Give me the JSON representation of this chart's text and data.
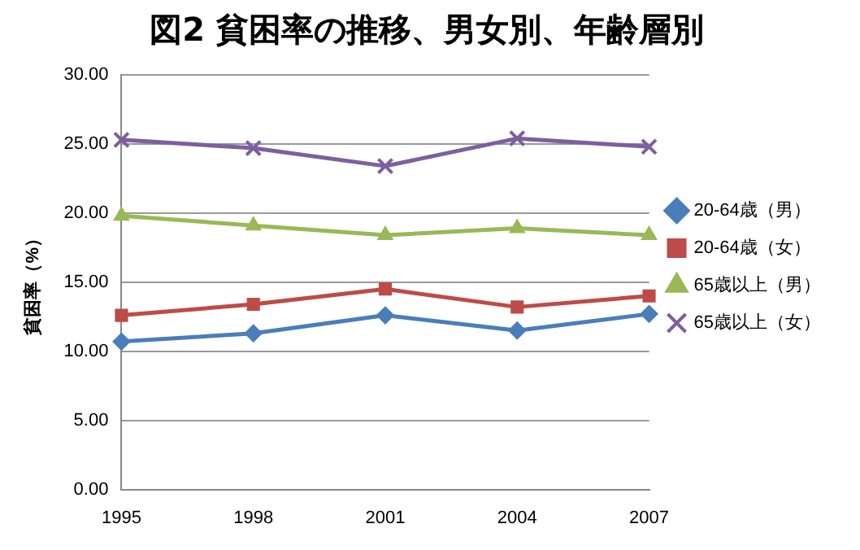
{
  "chart_data": {
    "type": "line",
    "title": "図2 貧困率の推移、男女別、年齢層別",
    "ylabel": "貧困率（%）",
    "categories": [
      "1995",
      "1998",
      "2001",
      "2004",
      "2007"
    ],
    "series": [
      {
        "name": "20-64歳（男）",
        "color": "#4a7ebb",
        "marker": "diamond",
        "values": [
          10.7,
          11.3,
          12.6,
          11.5,
          12.7
        ]
      },
      {
        "name": "20-64歳（女）",
        "color": "#be4b48",
        "marker": "square",
        "values": [
          12.6,
          13.4,
          14.5,
          13.2,
          14.0
        ]
      },
      {
        "name": "65歳以上（男）",
        "color": "#98b954",
        "marker": "triangle",
        "values": [
          19.8,
          19.1,
          18.4,
          18.9,
          18.4
        ]
      },
      {
        "name": "65歳以上（女）",
        "color": "#7d5fa0",
        "marker": "cross",
        "values": [
          25.3,
          24.7,
          23.4,
          25.4,
          24.8
        ]
      }
    ],
    "ylim": [
      0,
      30
    ],
    "yticks": [
      {
        "value": 0,
        "label": "0.00"
      },
      {
        "value": 5,
        "label": "5.00"
      },
      {
        "value": 10,
        "label": "10.00"
      },
      {
        "value": 15,
        "label": "15.00"
      },
      {
        "value": 20,
        "label": "20.00"
      },
      {
        "value": 25,
        "label": "25.00"
      },
      {
        "value": 30,
        "label": "30.00"
      }
    ],
    "grid": "y",
    "legend": "right"
  }
}
